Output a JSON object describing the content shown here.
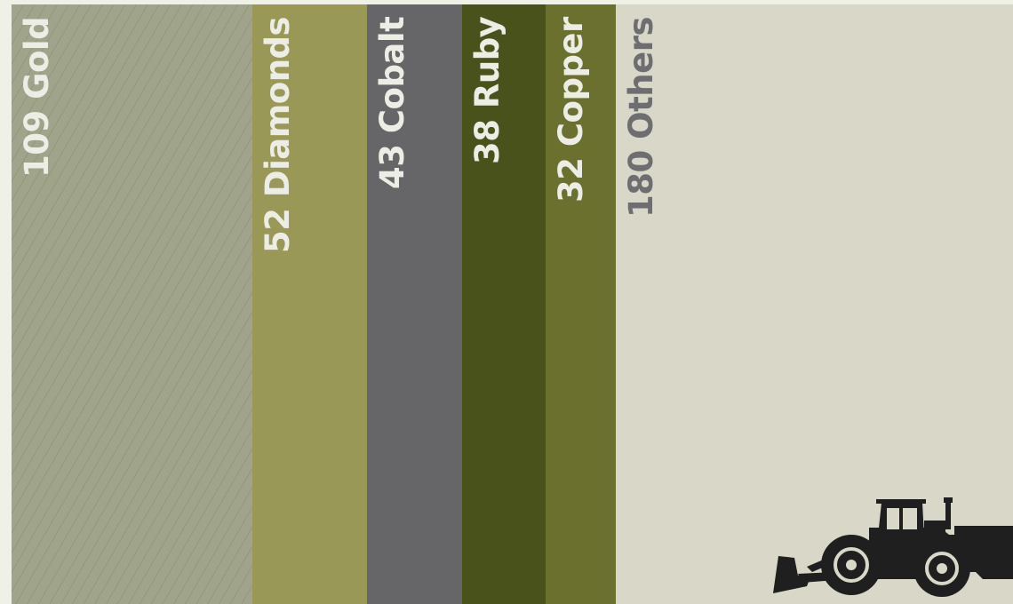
{
  "chart_data": {
    "type": "bar",
    "orientation": "stacked-100-horizontal-strips",
    "categories": [
      "Gold",
      "Diamonds",
      "Cobalt",
      "Ruby",
      "Copper",
      "Others"
    ],
    "values": [
      109,
      52,
      43,
      38,
      32,
      180
    ],
    "labels": [
      "109 Gold",
      "52 Diamonds",
      "43 Cobalt",
      "38 Ruby",
      "32 Copper",
      "180 Others"
    ],
    "colors": [
      "#a0a48a",
      "#999856",
      "#666668",
      "#4a521c",
      "#6b702f",
      "#d8d7c8"
    ],
    "label_colors": [
      "#ecede4",
      "#ecede4",
      "#ecede4",
      "#ecede4",
      "#ecede4",
      "#6e6e70"
    ],
    "hatched": [
      true,
      false,
      false,
      false,
      false,
      false
    ],
    "title": "",
    "xlabel": "",
    "ylabel": "",
    "grid": false,
    "legend": "none"
  },
  "decoration": {
    "icon": "bulldozer-icon",
    "color": "#1f1f1f"
  }
}
